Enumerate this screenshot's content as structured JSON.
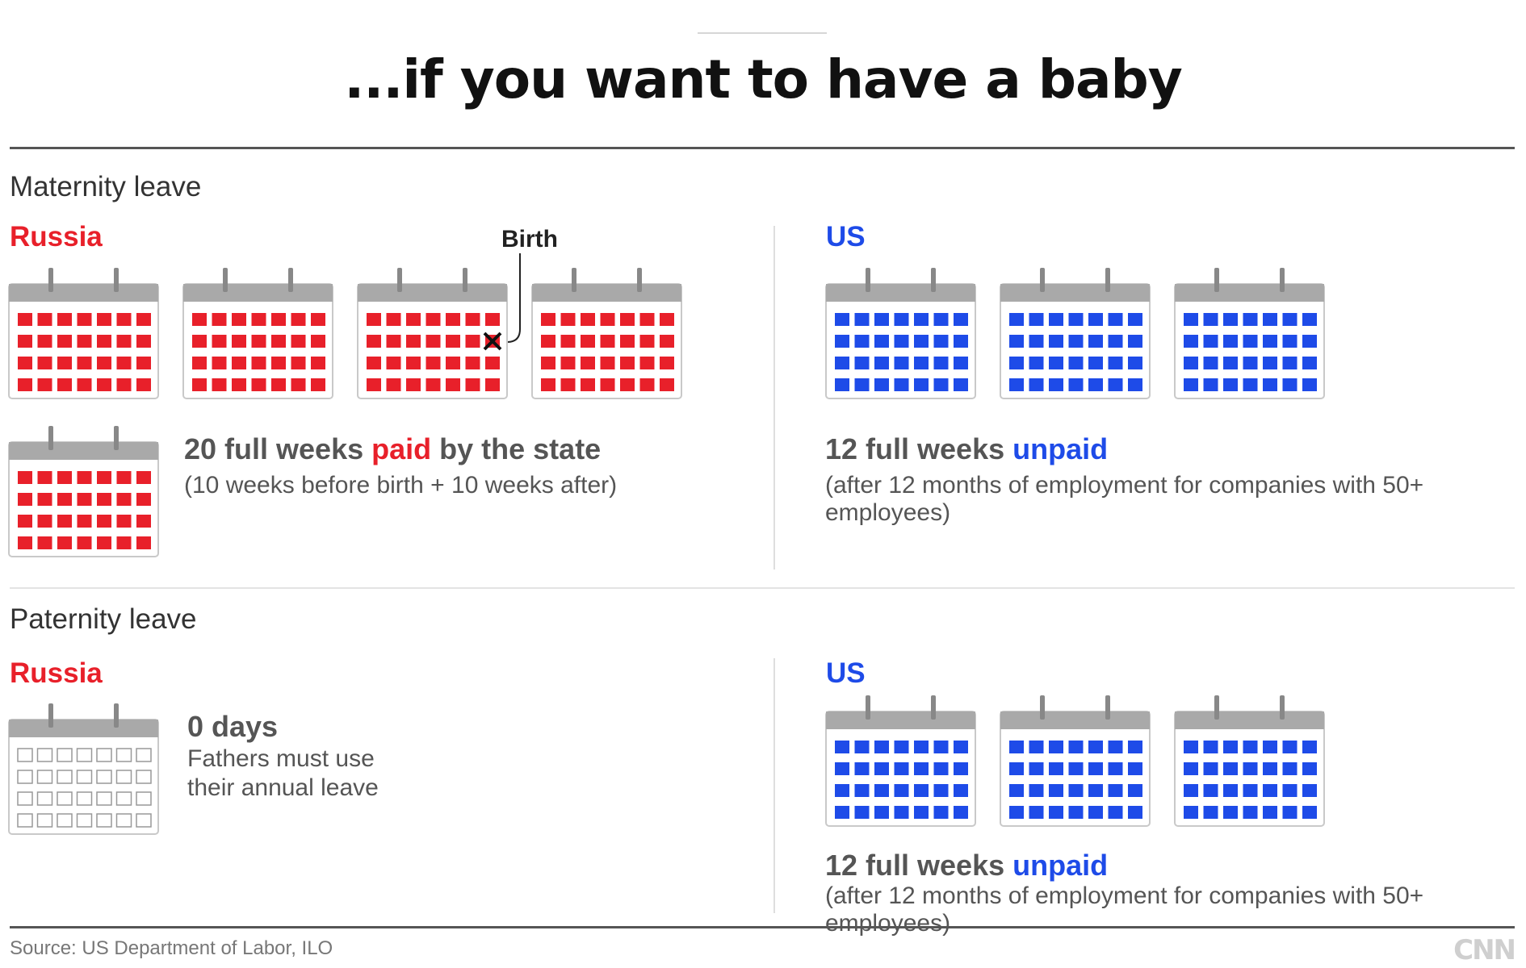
{
  "title": "...if you want to have a baby",
  "maternity": {
    "heading": "Maternity leave",
    "russia": {
      "label": "Russia",
      "birth_label": "Birth",
      "main_prefix": "20 full weeks ",
      "main_highlight": "paid",
      "main_suffix": " by the state",
      "sub": "(10 weeks before birth + 10 weeks after)",
      "calendar_count": 5,
      "color": "#e8202a"
    },
    "us": {
      "label": "US",
      "main_prefix": "12 full weeks ",
      "main_highlight": "unpaid",
      "sub": "(after 12 months of employment for companies with 50+ employees)",
      "calendar_count": 3,
      "color": "#1e4be8"
    }
  },
  "paternity": {
    "heading": "Paternity leave",
    "russia": {
      "label": "Russia",
      "main": "0 days",
      "sub_line1": "Fathers must use",
      "sub_line2": "their annual leave",
      "calendar_count": 1,
      "filled": false
    },
    "us": {
      "label": "US",
      "main_prefix": "12 full weeks ",
      "main_highlight": "unpaid",
      "sub": "(after 12 months of employment for companies with 50+ employees)",
      "calendar_count": 3,
      "color": "#1e4be8"
    }
  },
  "footer": {
    "source": "Source: US Department of Labor, ILO",
    "logo": "CNN"
  },
  "colors": {
    "russia": "#e8202a",
    "us": "#1e4be8",
    "calendar_header": "#a9a9a9",
    "empty_cell": "#999999"
  }
}
